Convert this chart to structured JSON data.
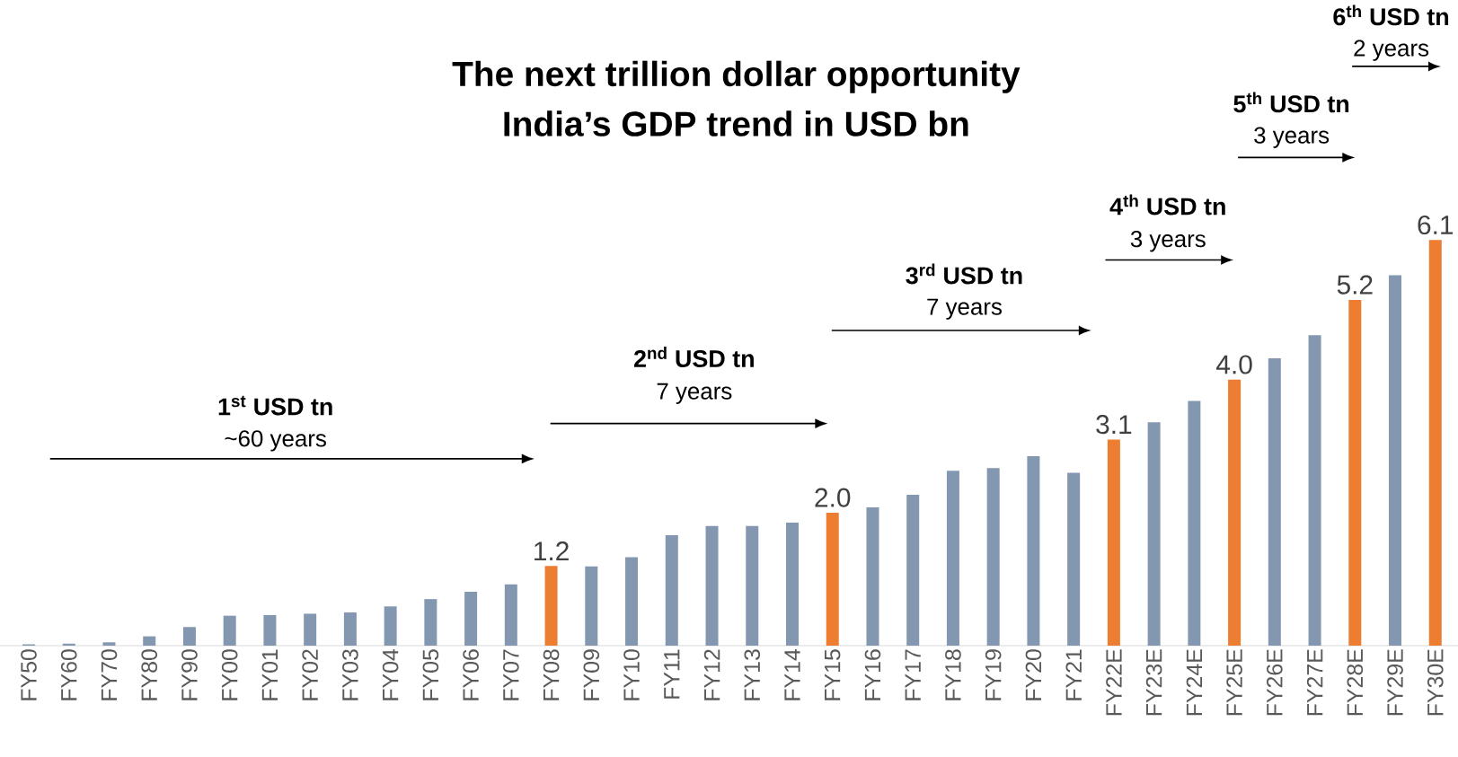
{
  "chart_data": {
    "type": "bar",
    "title": "The next trillion dollar opportunity",
    "subtitle": "India’s GDP trend in USD bn",
    "categories": [
      "FY50",
      "FY60",
      "FY70",
      "FY80",
      "FY90",
      "FY00",
      "FY01",
      "FY02",
      "FY03",
      "FY04",
      "FY05",
      "FY06",
      "FY07",
      "FY08",
      "FY09",
      "FY10",
      "FY11",
      "FY12",
      "FY13",
      "FY14",
      "FY15",
      "FY16",
      "FY17",
      "FY18",
      "FY19",
      "FY20",
      "FY21",
      "FY22E",
      "FY23E",
      "FY24E",
      "FY25E",
      "FY26E",
      "FY27E",
      "FY28E",
      "FY29E",
      "FY30E"
    ],
    "values": [
      0.02,
      0.03,
      0.05,
      0.14,
      0.28,
      0.45,
      0.46,
      0.48,
      0.5,
      0.59,
      0.7,
      0.81,
      0.92,
      1.2,
      1.19,
      1.33,
      1.66,
      1.8,
      1.8,
      1.85,
      2.0,
      2.08,
      2.27,
      2.63,
      2.67,
      2.85,
      2.6,
      3.1,
      3.36,
      3.68,
      4.0,
      4.32,
      4.67,
      5.2,
      5.57,
      6.1
    ],
    "value_labels": [
      null,
      null,
      null,
      null,
      null,
      null,
      null,
      null,
      null,
      null,
      null,
      null,
      null,
      "1.2",
      null,
      null,
      null,
      null,
      null,
      null,
      "2.0",
      null,
      null,
      null,
      null,
      null,
      null,
      "3.1",
      null,
      null,
      "4.0",
      null,
      null,
      "5.2",
      null,
      "6.1"
    ],
    "colors": [
      "#8497b0",
      "#8497b0",
      "#8497b0",
      "#8497b0",
      "#8497b0",
      "#8497b0",
      "#8497b0",
      "#8497b0",
      "#8497b0",
      "#8497b0",
      "#8497b0",
      "#8497b0",
      "#8497b0",
      "#ed7d31",
      "#8497b0",
      "#8497b0",
      "#8497b0",
      "#8497b0",
      "#8497b0",
      "#8497b0",
      "#ed7d31",
      "#8497b0",
      "#8497b0",
      "#8497b0",
      "#8497b0",
      "#8497b0",
      "#8497b0",
      "#ed7d31",
      "#8497b0",
      "#8497b0",
      "#ed7d31",
      "#8497b0",
      "#8497b0",
      "#ed7d31",
      "#8497b0",
      "#ed7d31"
    ],
    "annotations": [
      "1$^{st}$ USD tn",
      "~60 years",
      "2$^{nd}$ USD tn",
      "7 years",
      "3$^{rd}$ USD tn",
      "7 years",
      "4$^{th}$ USD tn",
      "3 years",
      "5$^{th}$ USD tn",
      "3 years",
      "6$^{th}$ USD tn",
      "2 years"
    ]
  }
}
